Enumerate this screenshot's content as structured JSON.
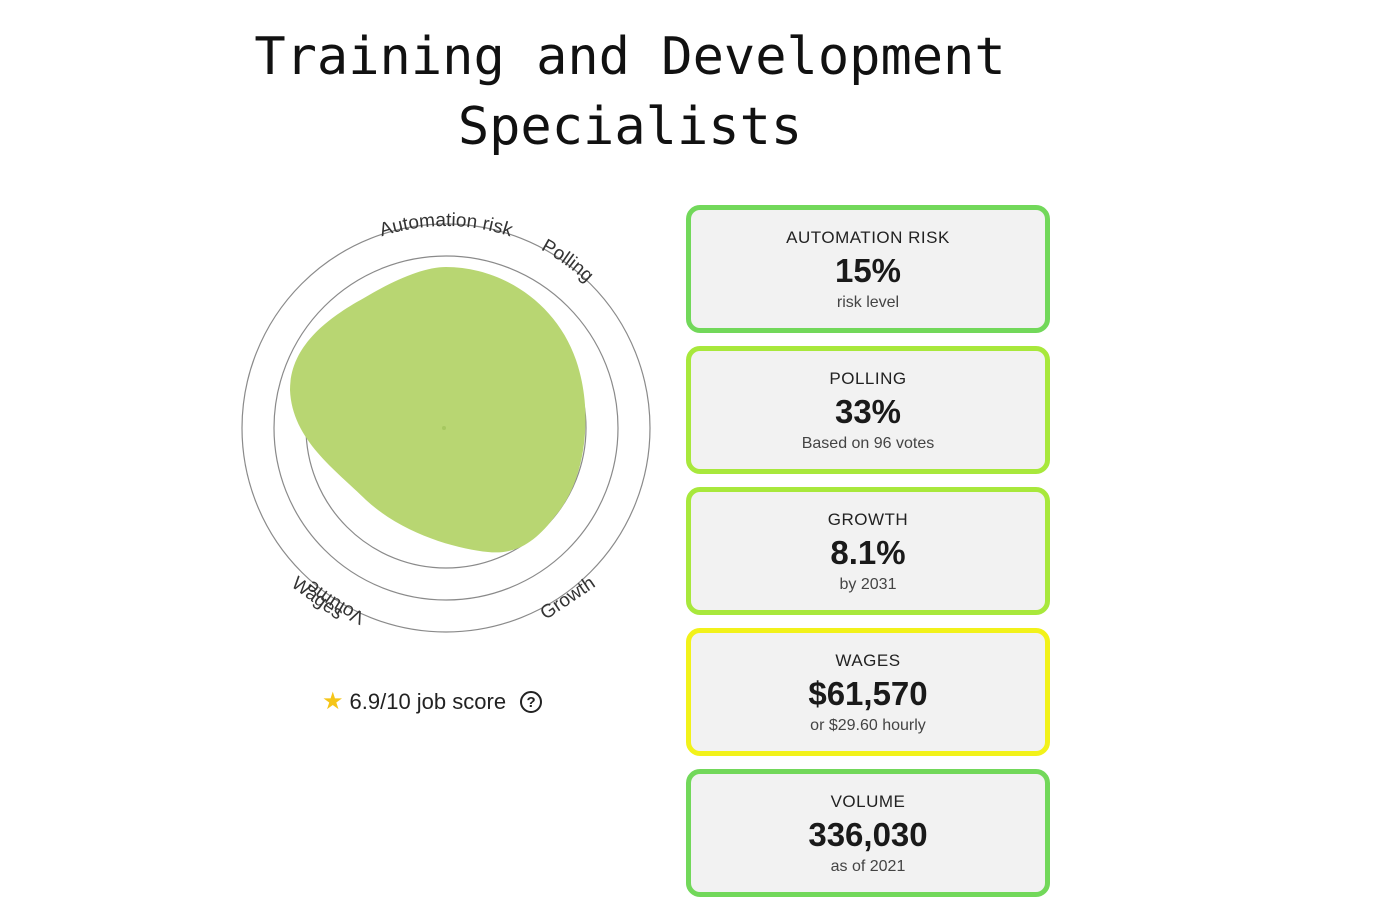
{
  "title": "Training and Development Specialists",
  "radar": {
    "axes": [
      "Automation risk",
      "Polling",
      "Growth",
      "Wages",
      "Volume"
    ],
    "fill_color": "#b8d672",
    "ring_color": "#8a8a8a"
  },
  "score": {
    "icon": "star-icon",
    "text": "6.9/10 job score",
    "help_icon": "question-circle-icon",
    "help_glyph": "?"
  },
  "cards": [
    {
      "label": "AUTOMATION RISK",
      "value": "15%",
      "sub": "risk level",
      "border_color": "#72d85a"
    },
    {
      "label": "POLLING",
      "value": "33%",
      "sub": "Based on 96 votes",
      "border_color": "#a8e83c"
    },
    {
      "label": "GROWTH",
      "value": "8.1%",
      "sub": "by 2031",
      "border_color": "#a8e83c"
    },
    {
      "label": "WAGES",
      "value": "$61,570",
      "sub": "or $29.60 hourly",
      "border_color": "#f2f21a"
    },
    {
      "label": "VOLUME",
      "value": "336,030",
      "sub": "as of 2021",
      "border_color": "#72d85a"
    }
  ]
}
